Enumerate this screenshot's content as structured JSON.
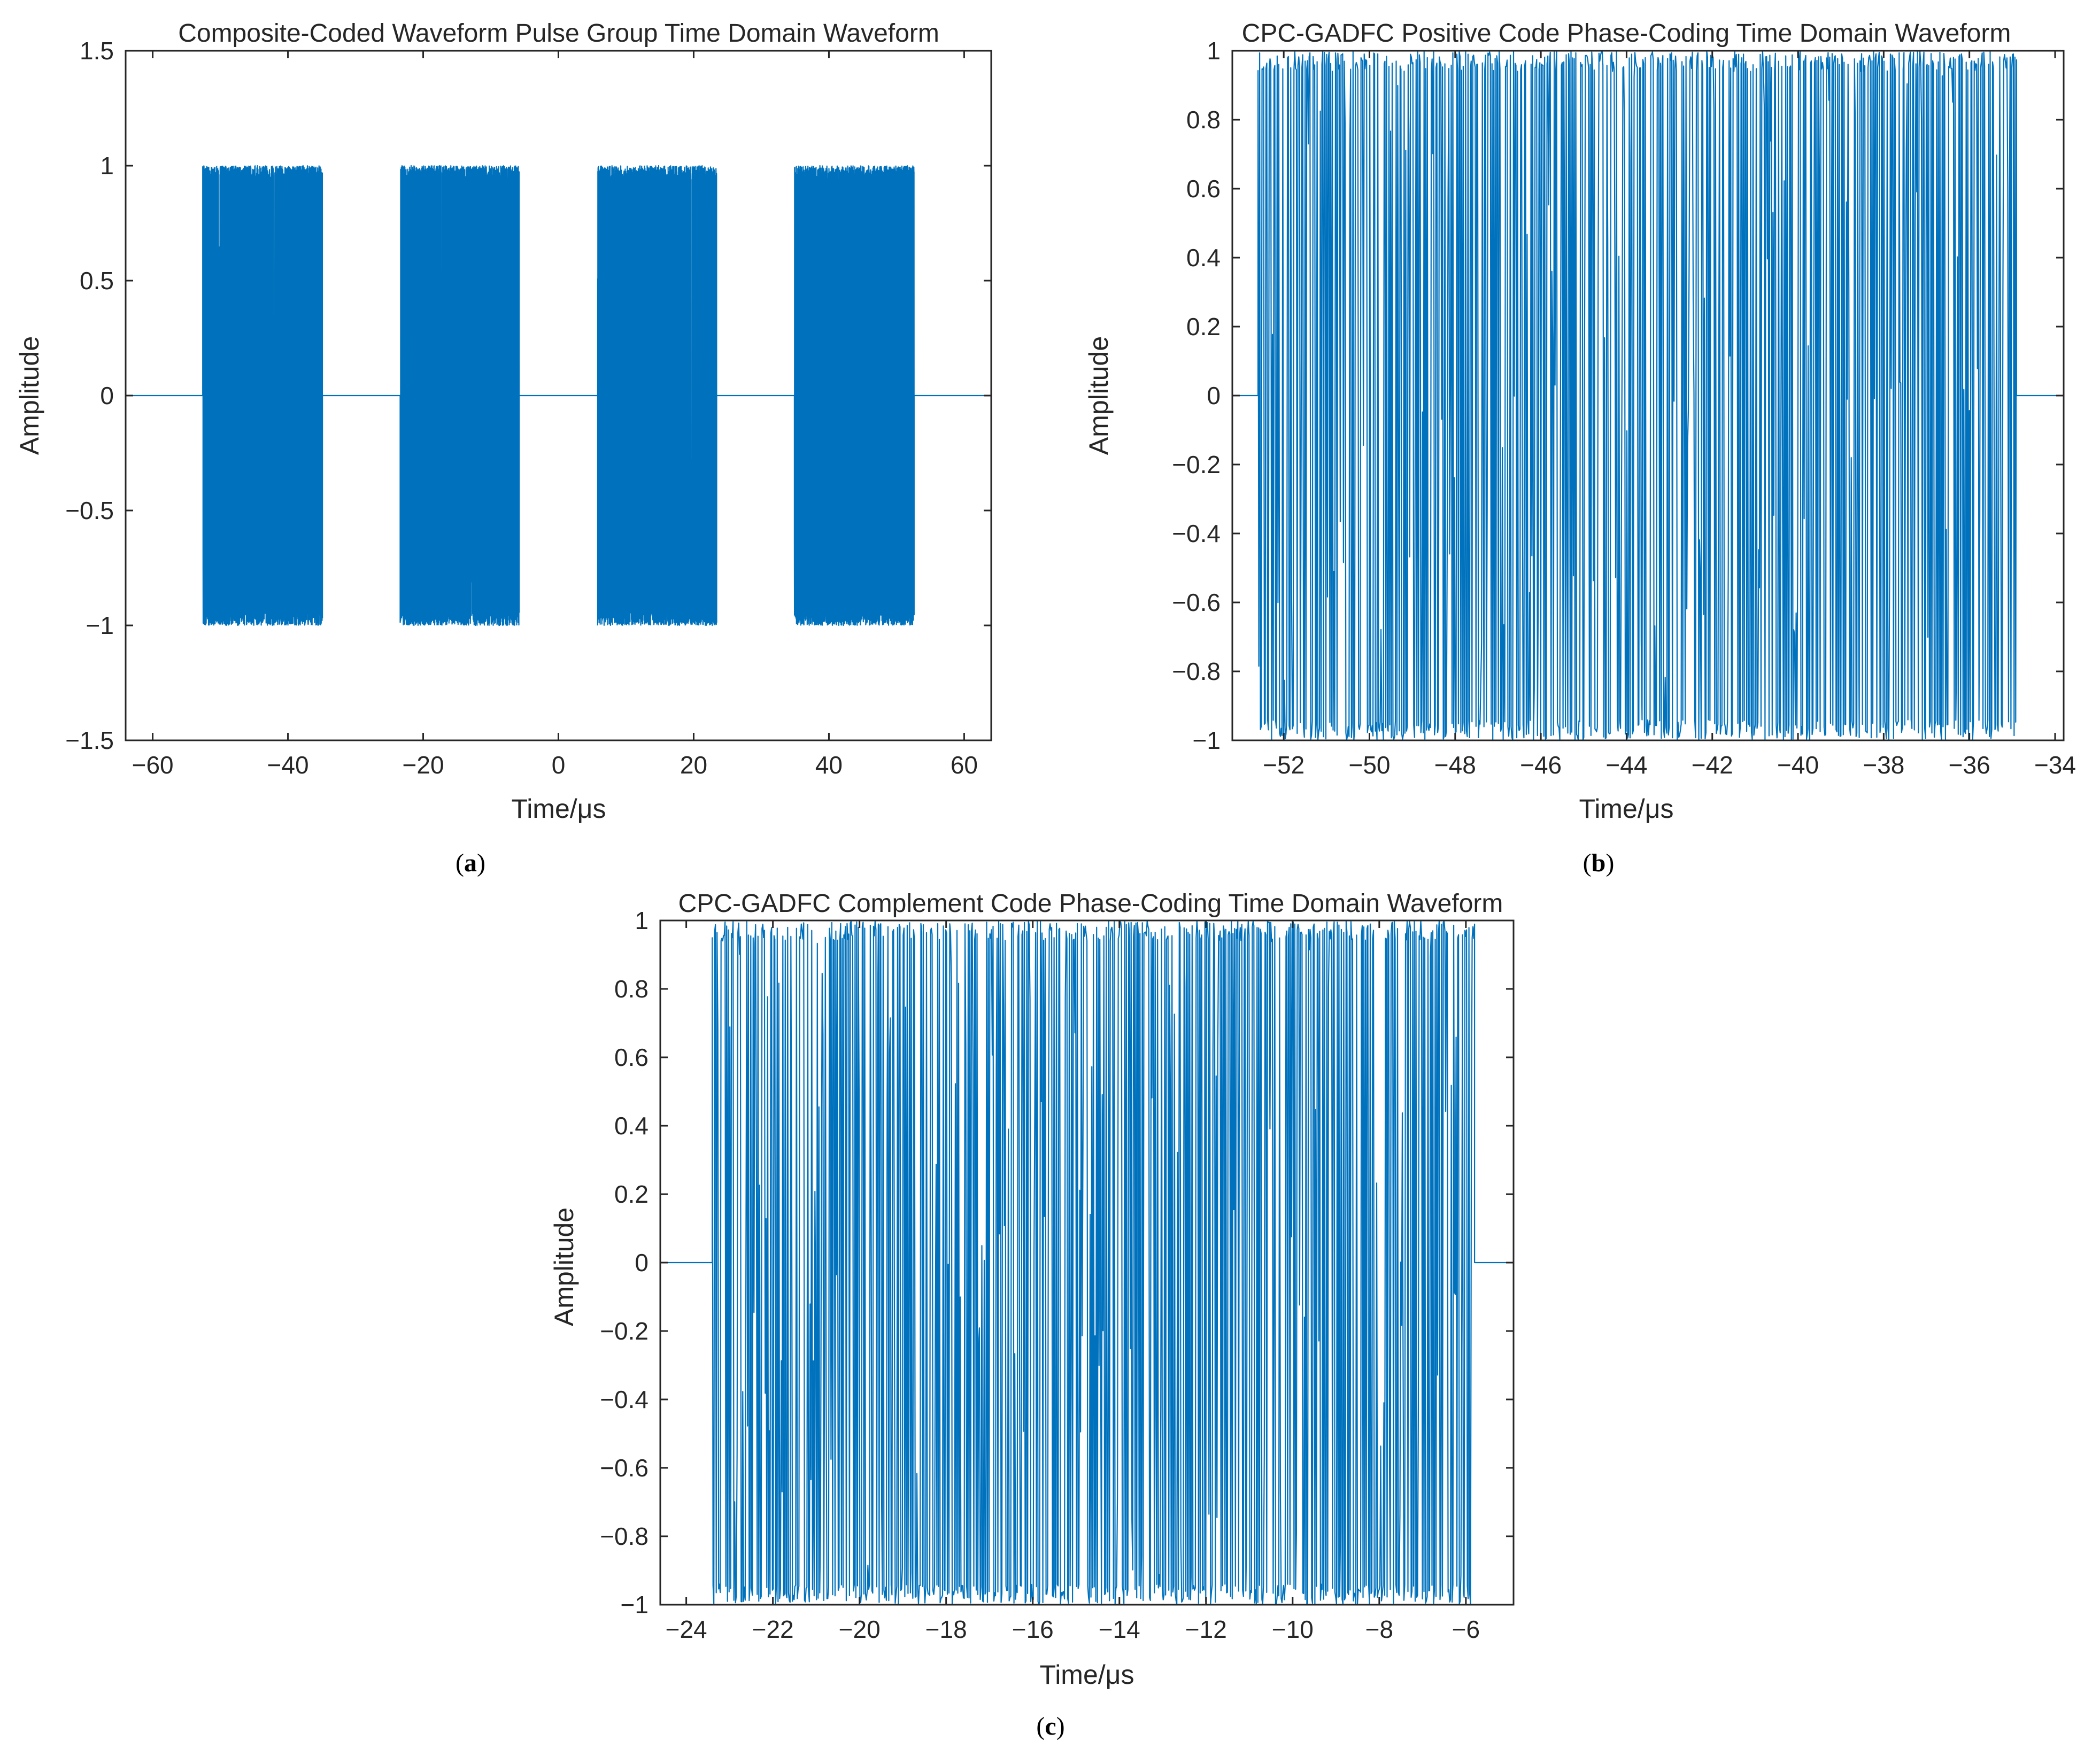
{
  "figure": {
    "captions": [
      "(a)",
      "(b)",
      "(c)"
    ]
  },
  "colors": {
    "series": "#0072bd",
    "axis": "#262626",
    "background": "#ffffff"
  },
  "chart_data": [
    {
      "id": "a",
      "type": "line",
      "caption_bold": "a",
      "title": "Composite-Coded Waveform Pulse Group Time Domain Waveform",
      "xlabel": "Time/μs",
      "ylabel": "Amplitude",
      "xlim": [
        -64,
        64
      ],
      "ylim": [
        -1.5,
        1.5
      ],
      "xticks": [
        -60,
        -40,
        -20,
        0,
        20,
        40,
        60
      ],
      "xtick_labels": [
        "−60",
        "−40",
        "−20",
        "0",
        "20",
        "40",
        "60"
      ],
      "yticks": [
        -1.5,
        -1,
        -0.5,
        0,
        0.5,
        1,
        1.5
      ],
      "ytick_labels": [
        "−1.5",
        "−1",
        "−0.5",
        "0",
        "0.5",
        "1",
        "1.5"
      ],
      "grid": false,
      "series": [
        {
          "name": "Composite-coded pulse group",
          "baseline": 0,
          "amplitude_range": [
            -1,
            1
          ],
          "pulses": [
            {
              "start": -52.6,
              "end": -34.9
            },
            {
              "start": -23.4,
              "end": -5.8
            },
            {
              "start": 5.8,
              "end": 23.4
            },
            {
              "start": 34.9,
              "end": 52.6
            }
          ]
        }
      ]
    },
    {
      "id": "b",
      "type": "line",
      "caption_bold": "b",
      "title": "CPC-GADFC Positive Code Phase-Coding Time Domain Waveform",
      "xlabel": "Time/μs",
      "ylabel": "Amplitude",
      "xlim": [
        -53.2,
        -33.8
      ],
      "ylim": [
        -1,
        1
      ],
      "xticks": [
        -52,
        -50,
        -48,
        -46,
        -44,
        -42,
        -40,
        -38,
        -36,
        -34
      ],
      "xtick_labels": [
        "−52",
        "−50",
        "−48",
        "−46",
        "−44",
        "−42",
        "−40",
        "−38",
        "−36",
        "−34"
      ],
      "yticks": [
        -1,
        -0.8,
        -0.6,
        -0.4,
        -0.2,
        0,
        0.2,
        0.4,
        0.6,
        0.8,
        1
      ],
      "ytick_labels": [
        "−1",
        "−0.8",
        "−0.6",
        "−0.4",
        "−0.2",
        "0",
        "0.2",
        "0.4",
        "0.6",
        "0.8",
        "1"
      ],
      "grid": false,
      "series": [
        {
          "name": "Positive code phase-coding",
          "baseline": 0,
          "amplitude_range": [
            -1,
            1
          ],
          "pulses": [
            {
              "start": -52.6,
              "end": -34.9
            }
          ]
        }
      ]
    },
    {
      "id": "c",
      "type": "line",
      "caption_bold": "c",
      "title": "CPC-GADFC Complement Code Phase-Coding Time Domain Waveform",
      "xlabel": "Time/μs",
      "ylabel": "Amplitude",
      "xlim": [
        -24.6,
        -4.9
      ],
      "ylim": [
        -1,
        1
      ],
      "xticks": [
        -24,
        -22,
        -20,
        -18,
        -16,
        -14,
        -12,
        -10,
        -8,
        -6
      ],
      "xtick_labels": [
        "−24",
        "−22",
        "−20",
        "−18",
        "−16",
        "−14",
        "−12",
        "−10",
        "−8",
        "−6"
      ],
      "yticks": [
        -1,
        -0.8,
        -0.6,
        -0.4,
        -0.2,
        0,
        0.2,
        0.4,
        0.6,
        0.8,
        1
      ],
      "ytick_labels": [
        "−1",
        "−0.8",
        "−0.6",
        "−0.4",
        "−0.2",
        "0",
        "0.2",
        "0.4",
        "0.6",
        "0.8",
        "1"
      ],
      "grid": false,
      "series": [
        {
          "name": "Complement code phase-coding",
          "baseline": 0,
          "amplitude_range": [
            -1,
            1
          ],
          "pulses": [
            {
              "start": -23.4,
              "end": -5.8
            }
          ]
        }
      ]
    }
  ]
}
